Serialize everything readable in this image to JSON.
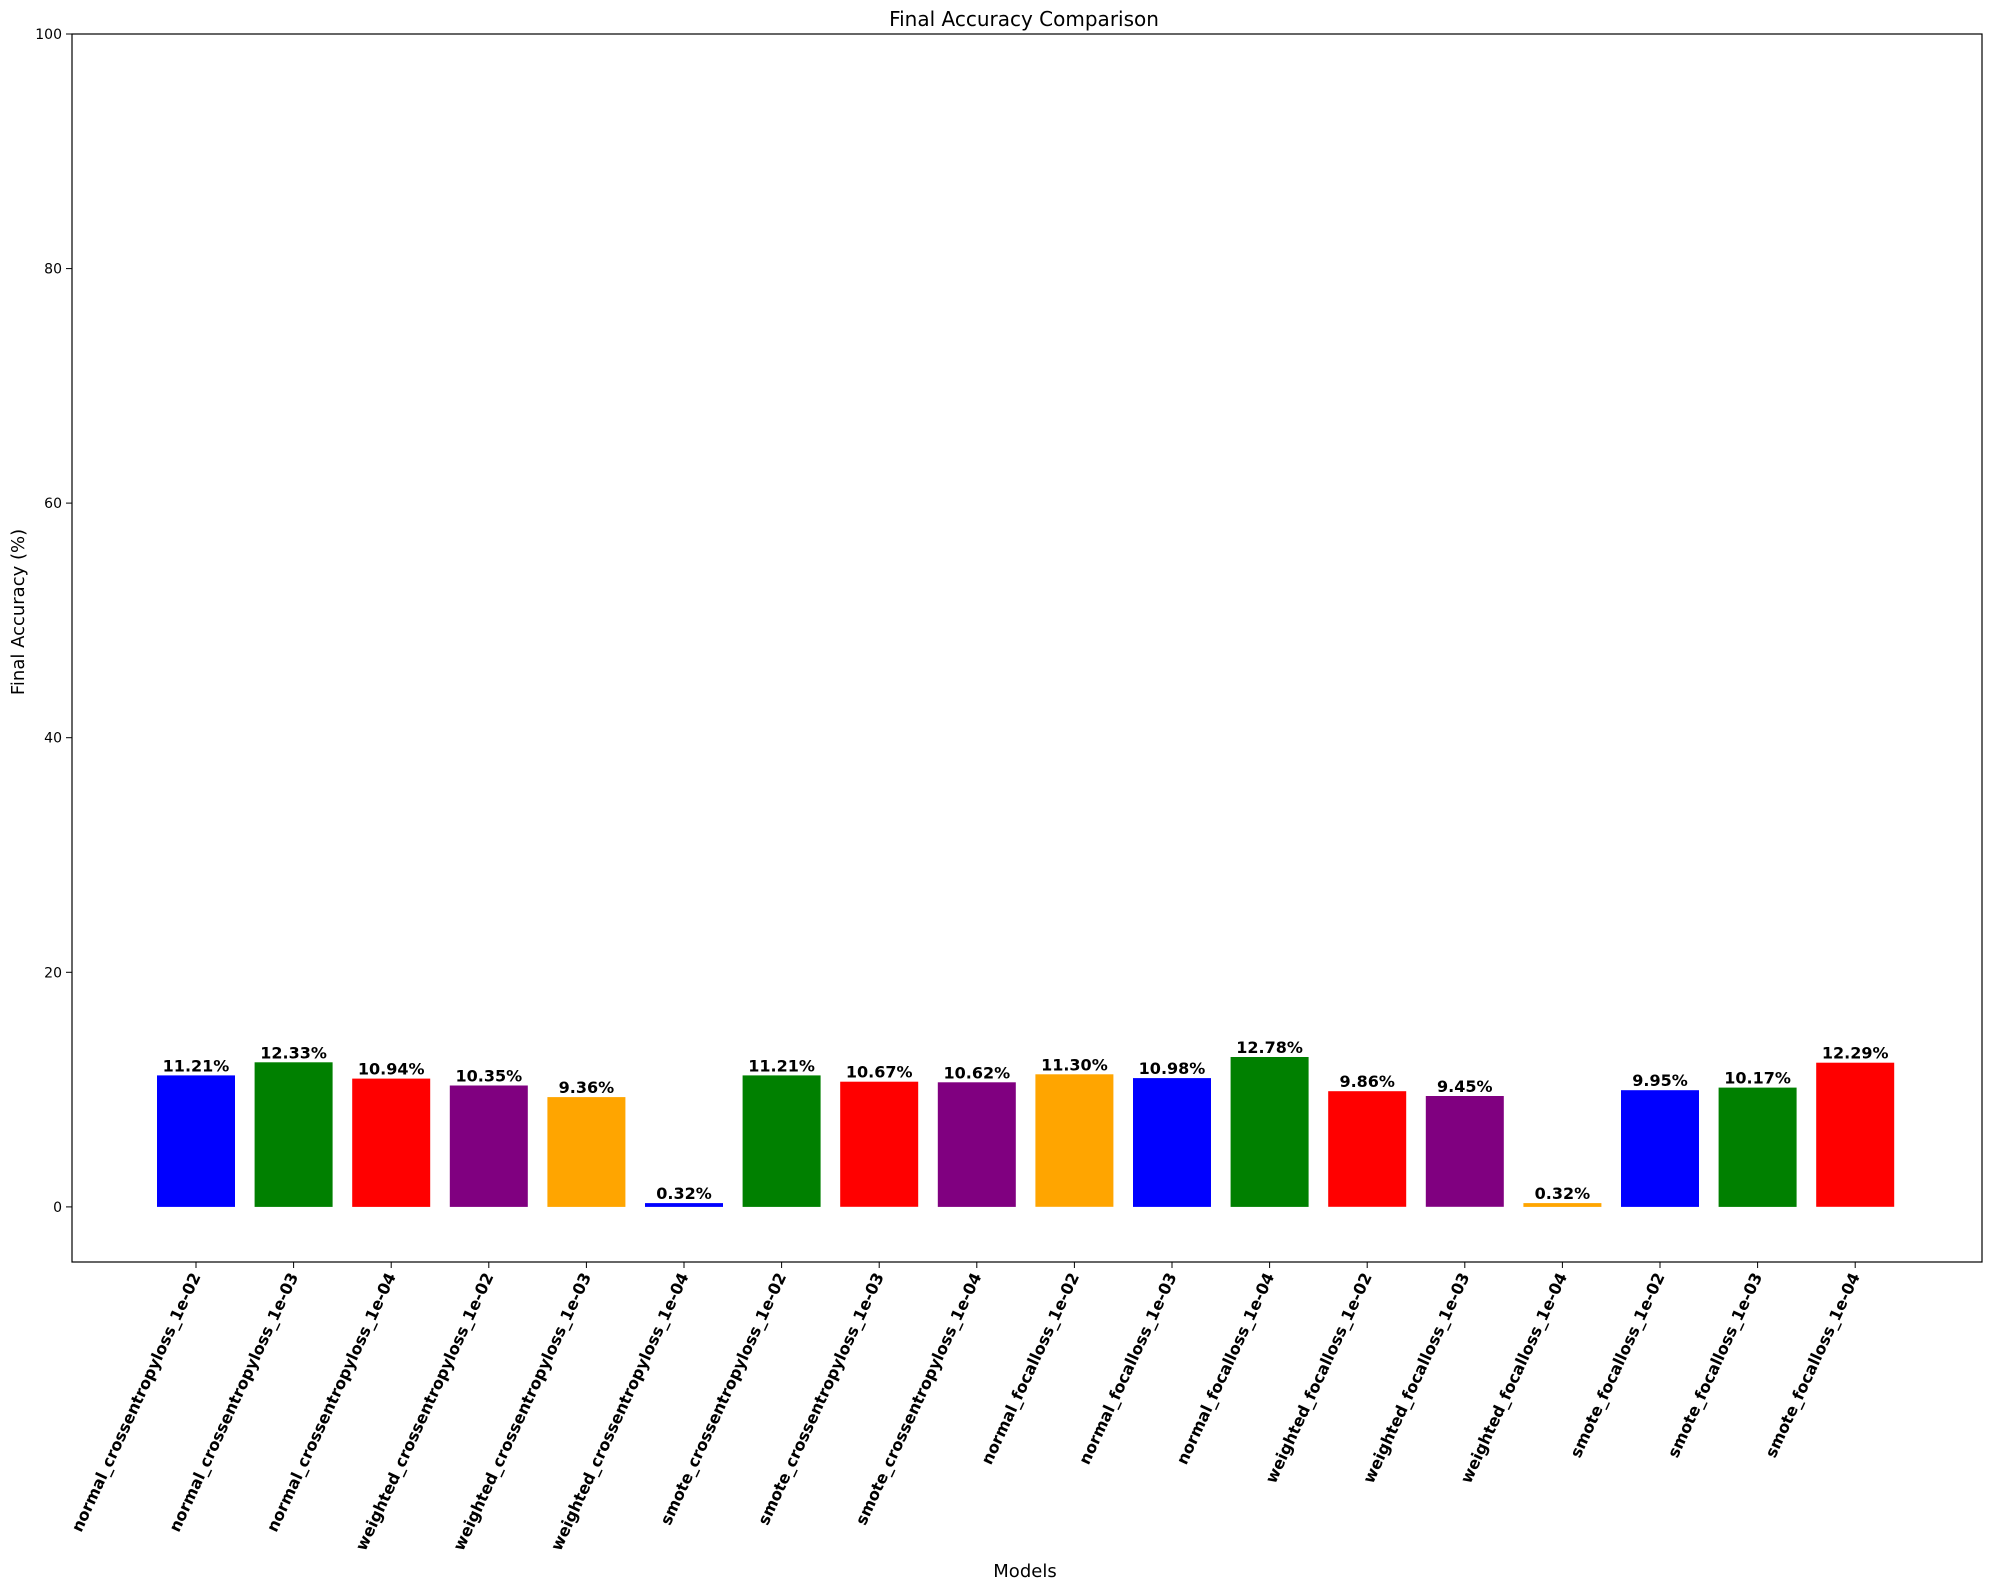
{
  "chart_data": {
    "type": "bar",
    "title": "Final Accuracy Comparison",
    "xlabel": "Models",
    "ylabel": "Final Accuracy (%)",
    "ylim": [
      -4.7,
      100
    ],
    "yticks": [
      0,
      20,
      40,
      60,
      80,
      100
    ],
    "grid": false,
    "categories": [
      "normal_crossentropyloss_1e-02",
      "normal_crossentropyloss_1e-03",
      "normal_crossentropyloss_1e-04",
      "weighted_crossentropyloss_1e-02",
      "weighted_crossentropyloss_1e-03",
      "weighted_crossentropyloss_1e-04",
      "smote_crossentropyloss_1e-02",
      "smote_crossentropyloss_1e-03",
      "smote_crossentropyloss_1e-04",
      "normal_focalloss_1e-02",
      "normal_focalloss_1e-03",
      "normal_focalloss_1e-04",
      "weighted_focalloss_1e-02",
      "weighted_focalloss_1e-03",
      "weighted_focalloss_1e-04",
      "smote_focalloss_1e-02",
      "smote_focalloss_1e-03",
      "smote_focalloss_1e-04"
    ],
    "values": [
      11.21,
      12.33,
      10.94,
      10.35,
      9.36,
      0.32,
      11.21,
      10.67,
      10.62,
      11.3,
      10.98,
      12.78,
      9.86,
      9.45,
      0.32,
      9.95,
      10.17,
      12.29
    ],
    "data_labels": [
      "11.21%",
      "12.33%",
      "10.94%",
      "10.35%",
      "9.36%",
      "0.32%",
      "11.21%",
      "10.67%",
      "10.62%",
      "11.30%",
      "10.98%",
      "12.78%",
      "9.86%",
      "9.45%",
      "0.32%",
      "9.95%",
      "10.17%",
      "12.29%"
    ],
    "bar_colors": [
      "#0000ff",
      "#008000",
      "#ff0000",
      "#800080",
      "#ffa500",
      "#0000ff",
      "#008000",
      "#ff0000",
      "#800080",
      "#ffa500",
      "#0000ff",
      "#008000",
      "#ff0000",
      "#800080",
      "#ffa500",
      "#0000ff",
      "#008000",
      "#ff0000"
    ]
  }
}
